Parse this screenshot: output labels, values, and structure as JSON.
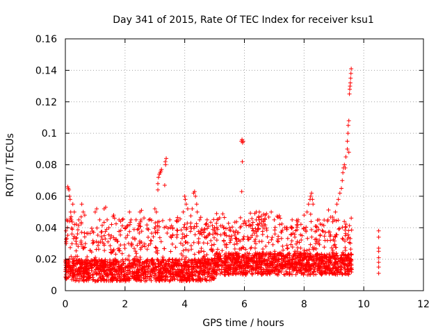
{
  "chart_data": {
    "type": "scatter",
    "title": "Day 341 of 2015, Rate Of TEC Index for receiver ksu1",
    "xlabel": "GPS time / hours",
    "ylabel": "ROTI / TECUs",
    "xlim": [
      0,
      12
    ],
    "ylim": [
      0,
      0.16
    ],
    "x_ticks": [
      "0",
      "2",
      "4",
      "6",
      "8",
      "10",
      "12"
    ],
    "y_ticks": [
      "0",
      "0.02",
      "0.04",
      "0.06",
      "0.08",
      "0.1",
      "0.12",
      "0.14",
      "0.16"
    ],
    "grid": true,
    "marker": "+",
    "color": "#ff0000",
    "series": [
      {
        "name": "ROTI",
        "generated_range": [
          0,
          9.6
        ],
        "noise_seed": 341,
        "points": [
          [
            0.08,
            0.066
          ],
          [
            0.1,
            0.065
          ],
          [
            0.12,
            0.064
          ],
          [
            0.14,
            0.06
          ],
          [
            0.16,
            0.058
          ],
          [
            0.05,
            0.045
          ],
          [
            0.07,
            0.04
          ],
          [
            0.02,
            0.038
          ],
          [
            0.03,
            0.03
          ],
          [
            0.18,
            0.05
          ],
          [
            0.2,
            0.045
          ],
          [
            0.25,
            0.055
          ],
          [
            0.3,
            0.05
          ],
          [
            0.55,
            0.055
          ],
          [
            0.6,
            0.05
          ],
          [
            0.65,
            0.048
          ],
          [
            0.45,
            0.045
          ],
          [
            1.0,
            0.05
          ],
          [
            1.05,
            0.052
          ],
          [
            1.15,
            0.045
          ],
          [
            1.3,
            0.052
          ],
          [
            1.35,
            0.053
          ],
          [
            1.4,
            0.045
          ],
          [
            1.6,
            0.047
          ],
          [
            1.62,
            0.048
          ],
          [
            1.65,
            0.046
          ],
          [
            1.8,
            0.045
          ],
          [
            1.85,
            0.044
          ],
          [
            2.15,
            0.05
          ],
          [
            2.2,
            0.045
          ],
          [
            2.5,
            0.05
          ],
          [
            2.55,
            0.051
          ],
          [
            2.8,
            0.045
          ],
          [
            3.0,
            0.052
          ],
          [
            3.05,
            0.05
          ],
          [
            3.1,
            0.068
          ],
          [
            3.12,
            0.072
          ],
          [
            3.15,
            0.074
          ],
          [
            3.18,
            0.075
          ],
          [
            3.2,
            0.076
          ],
          [
            3.22,
            0.077
          ],
          [
            3.1,
            0.064
          ],
          [
            3.35,
            0.082
          ],
          [
            3.38,
            0.084
          ],
          [
            3.36,
            0.08
          ],
          [
            3.33,
            0.067
          ],
          [
            3.5,
            0.045
          ],
          [
            3.6,
            0.04
          ],
          [
            3.95,
            0.05
          ],
          [
            4.0,
            0.06
          ],
          [
            4.02,
            0.058
          ],
          [
            4.05,
            0.055
          ],
          [
            4.1,
            0.052
          ],
          [
            4.25,
            0.052
          ],
          [
            4.3,
            0.062
          ],
          [
            4.33,
            0.063
          ],
          [
            4.36,
            0.06
          ],
          [
            4.4,
            0.055
          ],
          [
            4.42,
            0.05
          ],
          [
            4.5,
            0.045
          ],
          [
            4.7,
            0.042
          ],
          [
            4.75,
            0.045
          ],
          [
            5.0,
            0.04
          ],
          [
            5.3,
            0.04
          ],
          [
            5.4,
            0.035
          ],
          [
            5.5,
            0.04
          ],
          [
            5.9,
            0.095
          ],
          [
            5.92,
            0.096
          ],
          [
            5.94,
            0.094
          ],
          [
            5.96,
            0.095
          ],
          [
            5.93,
            0.082
          ],
          [
            5.91,
            0.063
          ],
          [
            6.4,
            0.045
          ],
          [
            6.5,
            0.05
          ],
          [
            6.7,
            0.048
          ],
          [
            6.9,
            0.05
          ],
          [
            7.0,
            0.045
          ],
          [
            7.2,
            0.046
          ],
          [
            7.4,
            0.04
          ],
          [
            7.6,
            0.045
          ],
          [
            7.8,
            0.045
          ],
          [
            8.0,
            0.048
          ],
          [
            8.1,
            0.05
          ],
          [
            8.15,
            0.055
          ],
          [
            8.2,
            0.058
          ],
          [
            8.22,
            0.06
          ],
          [
            8.25,
            0.062
          ],
          [
            8.28,
            0.058
          ],
          [
            8.3,
            0.055
          ],
          [
            8.5,
            0.045
          ],
          [
            8.6,
            0.042
          ],
          [
            8.8,
            0.045
          ],
          [
            9.0,
            0.045
          ],
          [
            9.05,
            0.05
          ],
          [
            9.1,
            0.055
          ],
          [
            9.15,
            0.058
          ],
          [
            9.2,
            0.062
          ],
          [
            9.25,
            0.065
          ],
          [
            9.28,
            0.07
          ],
          [
            9.3,
            0.075
          ],
          [
            9.32,
            0.078
          ],
          [
            9.35,
            0.08
          ],
          [
            9.38,
            0.078
          ],
          [
            9.4,
            0.085
          ],
          [
            9.45,
            0.095
          ],
          [
            9.47,
            0.1
          ],
          [
            9.48,
            0.105
          ],
          [
            9.5,
            0.108
          ],
          [
            9.52,
            0.125
          ],
          [
            9.53,
            0.128
          ],
          [
            9.54,
            0.13
          ],
          [
            9.55,
            0.132
          ],
          [
            9.56,
            0.135
          ],
          [
            9.57,
            0.138
          ],
          [
            9.58,
            0.141
          ],
          [
            9.5,
            0.088
          ],
          [
            9.45,
            0.09
          ],
          [
            10.5,
            0.038
          ],
          [
            10.5,
            0.034
          ],
          [
            10.5,
            0.027
          ],
          [
            10.5,
            0.025
          ],
          [
            10.5,
            0.021
          ],
          [
            10.5,
            0.018
          ],
          [
            10.5,
            0.015
          ],
          [
            10.5,
            0.011
          ]
        ]
      }
    ]
  }
}
